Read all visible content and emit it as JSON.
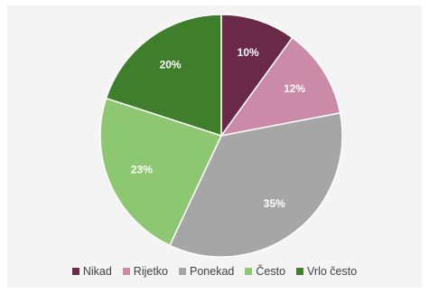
{
  "chart_data": {
    "type": "pie",
    "categories": [
      "Nikad",
      "Rijetko",
      "Ponekad",
      "Često",
      "Vrlo često"
    ],
    "values": [
      10,
      12,
      35,
      23,
      20
    ],
    "labels": [
      "10%",
      "12%",
      "35%",
      "23%",
      "20%"
    ],
    "unit": "%",
    "colors": [
      "#6a2a47",
      "#cb8aa6",
      "#a6a6a6",
      "#8dc772",
      "#3f7e2b"
    ],
    "start_angle": "12 o'clock",
    "direction": "clockwise",
    "legend_position": "bottom"
  }
}
